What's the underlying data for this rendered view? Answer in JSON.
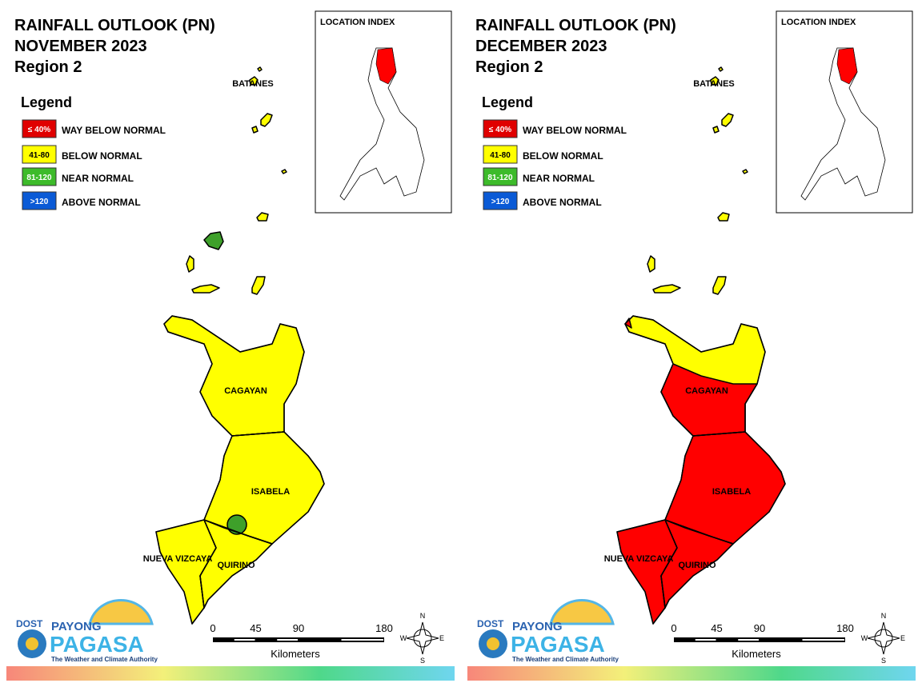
{
  "panels": [
    {
      "title": [
        "RAINFALL OUTLOOK (PN)",
        "NOVEMBER 2023",
        "Region 2"
      ],
      "legend": {
        "title": "Legend",
        "items": [
          {
            "range": "≤ 40%",
            "label": "WAY BELOW NORMAL",
            "color": "#e00000"
          },
          {
            "range": "41-80",
            "label": "BELOW NORMAL",
            "color": "#ffff00"
          },
          {
            "range": "81-120",
            "label": "NEAR NORMAL",
            "color": "#3dbb2a"
          },
          {
            "range": ">120",
            "label": "ABOVE NORMAL",
            "color": "#0a5ad6"
          }
        ]
      },
      "inset_title": "LOCATION INDEX",
      "provinces": [
        {
          "name": "BATANES",
          "color": "#ffff00"
        },
        {
          "name": "CAGAYAN",
          "color": "#ffff00"
        },
        {
          "name": "ISABELA",
          "color": "#ffff00"
        },
        {
          "name": "NUEVA VIZCAYA",
          "color": "#ffff00"
        },
        {
          "name": "QUIRINO",
          "color": "#ffff00"
        }
      ],
      "patches": [
        {
          "color": "#3ea02a"
        },
        {
          "color": "#3ea02a"
        }
      ],
      "scale": {
        "ticks": [
          0,
          45,
          90,
          180
        ],
        "unit": "Kilometers"
      },
      "compass": [
        "N",
        "E",
        "S",
        "W"
      ],
      "logo": {
        "agency": "DOST",
        "name1": "PAYONG",
        "name2": "PAGASA",
        "tagline": "The Weather and Climate Authority"
      }
    },
    {
      "title": [
        "RAINFALL OUTLOOK (PN)",
        "DECEMBER 2023",
        "Region 2"
      ],
      "legend": {
        "title": "Legend",
        "items": [
          {
            "range": "≤ 40%",
            "label": "WAY BELOW NORMAL",
            "color": "#e00000"
          },
          {
            "range": "41-80",
            "label": "BELOW NORMAL",
            "color": "#ffff00"
          },
          {
            "range": "81-120",
            "label": "NEAR NORMAL",
            "color": "#3dbb2a"
          },
          {
            "range": ">120",
            "label": "ABOVE NORMAL",
            "color": "#0a5ad6"
          }
        ]
      },
      "inset_title": "LOCATION INDEX",
      "provinces": [
        {
          "name": "BATANES",
          "color": "#ffff00"
        },
        {
          "name": "CAGAYAN",
          "color": "#ffff00"
        },
        {
          "name": "ISABELA",
          "color": "#ff0000"
        },
        {
          "name": "NUEVA VIZCAYA",
          "color": "#ff0000"
        },
        {
          "name": "QUIRINO",
          "color": "#ff0000"
        }
      ],
      "patches": [
        {
          "color": "#ff0000"
        },
        {
          "color": "#ff0000"
        }
      ],
      "scale": {
        "ticks": [
          0,
          45,
          90,
          180
        ],
        "unit": "Kilometers"
      },
      "compass": [
        "N",
        "E",
        "S",
        "W"
      ],
      "logo": {
        "agency": "DOST",
        "name1": "PAYONG",
        "name2": "PAGASA",
        "tagline": "The Weather and Climate Authority"
      }
    }
  ]
}
